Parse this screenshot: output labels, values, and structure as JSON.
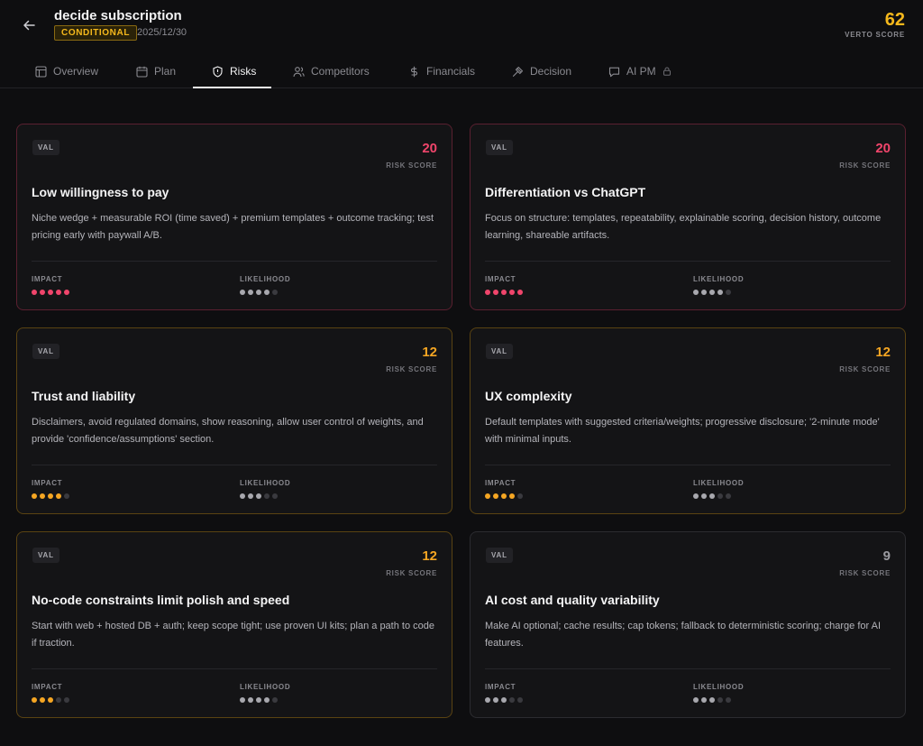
{
  "header": {
    "title": "decide subscription",
    "badge": "CONDITIONAL",
    "date": "2025/12/30",
    "score": "62",
    "score_label": "VERTO SCORE"
  },
  "tabs": [
    {
      "label": "Overview",
      "icon": "layout-icon"
    },
    {
      "label": "Plan",
      "icon": "calendar-icon"
    },
    {
      "label": "Risks",
      "icon": "shield-icon",
      "active": true
    },
    {
      "label": "Competitors",
      "icon": "users-icon"
    },
    {
      "label": "Financials",
      "icon": "dollar-icon"
    },
    {
      "label": "Decision",
      "icon": "gavel-icon"
    },
    {
      "label": "AI PM",
      "icon": "message-icon",
      "locked": true
    }
  ],
  "colors": {
    "red": "#f0456b",
    "amber": "#f5a623",
    "gray": "#9a9aa0",
    "dot_gray": "#a8a8ae",
    "dot_off": "#3a3a3f"
  },
  "labels": {
    "tag": "VAL",
    "risk_score": "RISK SCORE",
    "impact": "IMPACT",
    "likelihood": "LIKELIHOOD"
  },
  "risks": [
    {
      "tone": "red",
      "score": "20",
      "title": "Low willingness to pay",
      "desc": "Niche wedge + measurable ROI (time saved) + premium templates + outcome tracking; test pricing early with paywall A/B.",
      "impact": 5,
      "impact_color": "red",
      "likelihood": 4
    },
    {
      "tone": "red",
      "score": "20",
      "title": "Differentiation vs ChatGPT",
      "desc": "Focus on structure: templates, repeatability, explainable scoring, decision history, outcome learning, shareable artifacts.",
      "impact": 5,
      "impact_color": "red",
      "likelihood": 4
    },
    {
      "tone": "amber",
      "score": "12",
      "title": "Trust and liability",
      "desc": "Disclaimers, avoid regulated domains, show reasoning, allow user control of weights, and provide 'confidence/assumptions' section.",
      "impact": 4,
      "impact_color": "amber",
      "likelihood": 3
    },
    {
      "tone": "amber",
      "score": "12",
      "title": "UX complexity",
      "desc": "Default templates with suggested criteria/weights; progressive disclosure; '2-minute mode' with minimal inputs.",
      "impact": 4,
      "impact_color": "amber",
      "likelihood": 3
    },
    {
      "tone": "amber",
      "score": "12",
      "title": "No-code constraints limit polish and speed",
      "desc": "Start with web + hosted DB + auth; keep scope tight; use proven UI kits; plan a path to code if traction.",
      "impact": 3,
      "impact_color": "amber",
      "likelihood": 4
    },
    {
      "tone": "gray",
      "score": "9",
      "title": "AI cost and quality variability",
      "desc": "Make AI optional; cache results; cap tokens; fallback to deterministic scoring; charge for AI features.",
      "impact": 3,
      "impact_color": "gray",
      "likelihood": 3
    }
  ]
}
